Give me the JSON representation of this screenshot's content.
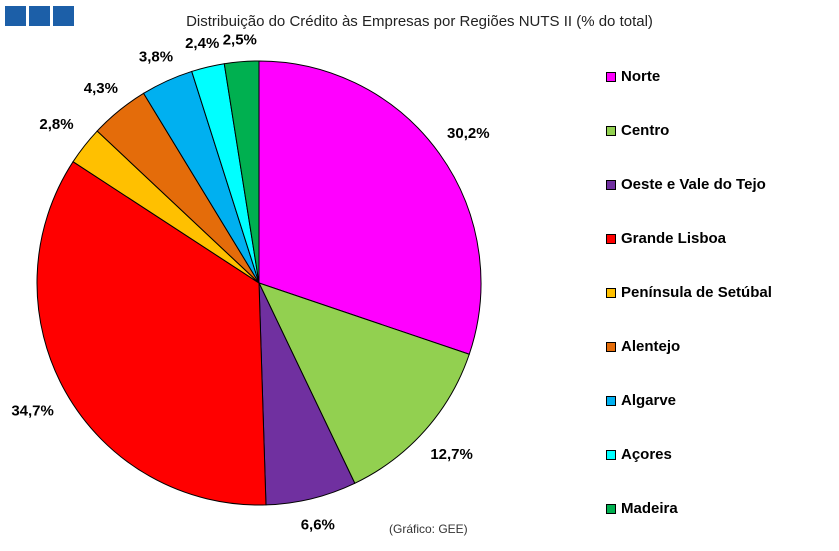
{
  "logo": {
    "colors": [
      "#1c5fa8",
      "#1c5fa8",
      "#1c5fa8"
    ]
  },
  "source_note": "(Gráfico: GEE)",
  "chart_data": {
    "type": "pie",
    "title": "Distribuição do Crédito às Empresas por Regiões NUTS II (% do total)",
    "unit": "%",
    "start_angle_deg": 0,
    "direction": "clockwise",
    "legend_position": "right",
    "slices": [
      {
        "name": "Norte",
        "value": 30.2,
        "label": "30,2%",
        "color": "#ff00ff"
      },
      {
        "name": "Centro",
        "value": 12.7,
        "label": "12,7%",
        "color": "#92d050"
      },
      {
        "name": "Oeste e Vale do Tejo",
        "value": 6.6,
        "label": "6,6%",
        "color": "#7030a0"
      },
      {
        "name": "Grande Lisboa",
        "value": 34.7,
        "label": "34,7%",
        "color": "#ff0000"
      },
      {
        "name": "Península de Setúbal",
        "value": 2.8,
        "label": "2,8%",
        "color": "#ffc000"
      },
      {
        "name": "Alentejo",
        "value": 4.3,
        "label": "4,3%",
        "color": "#e46c0a"
      },
      {
        "name": "Algarve",
        "value": 3.8,
        "label": "3,8%",
        "color": "#00b0f0"
      },
      {
        "name": "Açores",
        "value": 2.4,
        "label": "2,4%",
        "color": "#00ffff"
      },
      {
        "name": "Madeira",
        "value": 2.5,
        "label": "2,5%",
        "color": "#00b050"
      }
    ]
  }
}
